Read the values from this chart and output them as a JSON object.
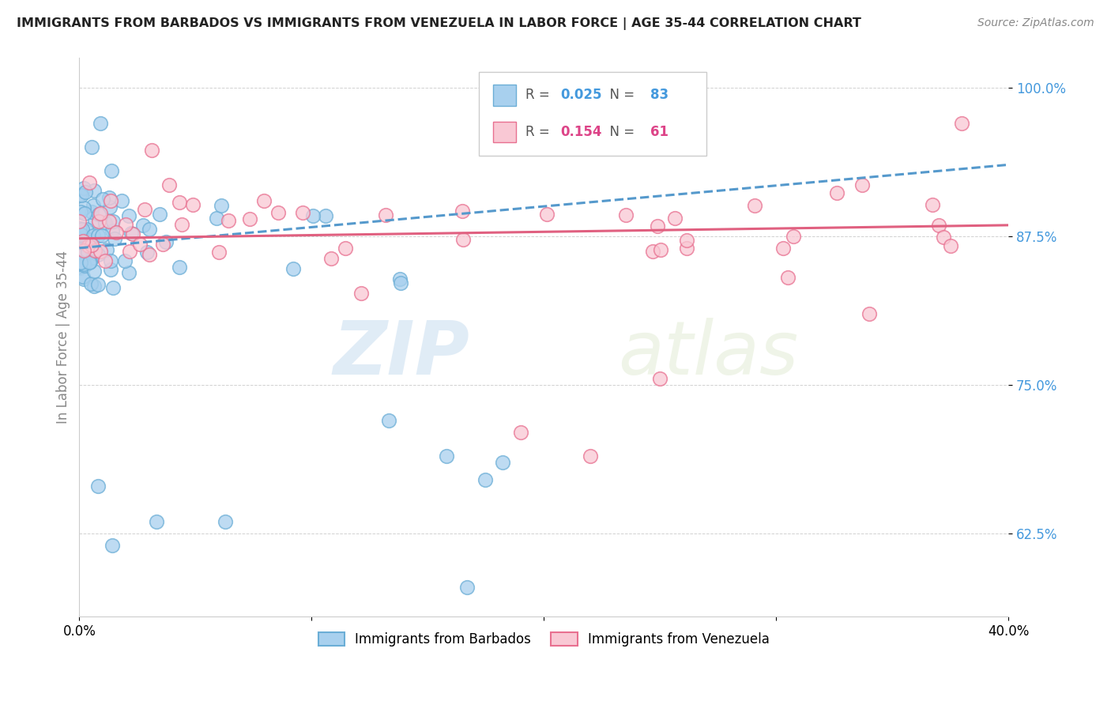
{
  "title": "IMMIGRANTS FROM BARBADOS VS IMMIGRANTS FROM VENEZUELA IN LABOR FORCE | AGE 35-44 CORRELATION CHART",
  "source": "Source: ZipAtlas.com",
  "ylabel": "In Labor Force | Age 35-44",
  "legend_labels": [
    "Immigrants from Barbados",
    "Immigrants from Venezuela"
  ],
  "legend_R": [
    0.025,
    0.154
  ],
  "legend_N": [
    83,
    61
  ],
  "color_blue": "#a8d0ee",
  "color_blue_edge": "#6baed6",
  "color_pink": "#f9c8d4",
  "color_pink_edge": "#e87090",
  "color_blue_line": "#5599cc",
  "color_pink_line": "#e06080",
  "color_blue_text": "#4499dd",
  "color_pink_text": "#dd4488",
  "xmin": 0.0,
  "xmax": 0.4,
  "ymin": 0.555,
  "ymax": 1.025,
  "ytick_vals": [
    0.625,
    0.75,
    0.875,
    1.0
  ],
  "ytick_labels": [
    "62.5%",
    "75.0%",
    "87.5%",
    "100.0%"
  ],
  "xtick_vals": [
    0.0,
    0.1,
    0.2,
    0.3,
    0.4
  ],
  "xtick_labels": [
    "0.0%",
    "",
    "",
    "",
    "40.0%"
  ],
  "watermark_zip": "ZIP",
  "watermark_atlas": "atlas"
}
